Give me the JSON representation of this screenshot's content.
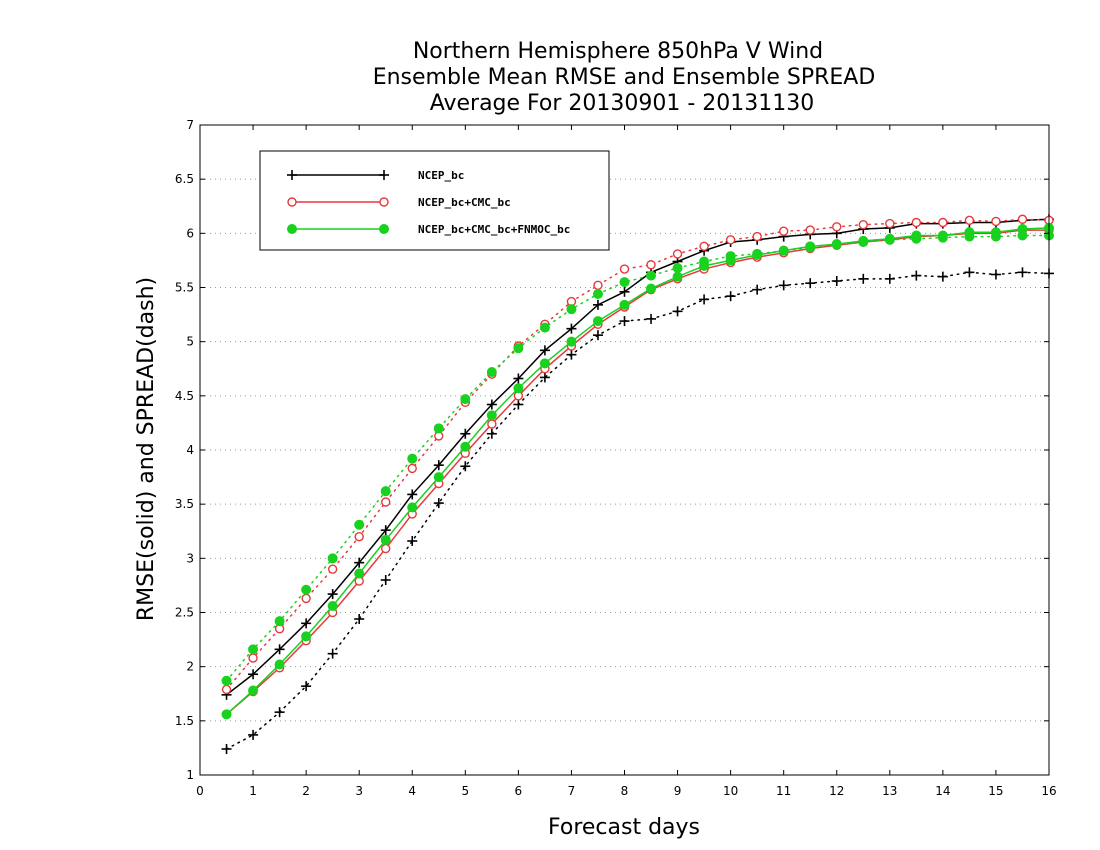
{
  "chart_data": {
    "type": "line",
    "title_lines": [
      "Northern Hemisphere 850hPa V Wind",
      "Ensemble Mean RMSE and Ensemble SPREAD",
      "Average For 20130901 - 20131130"
    ],
    "xlabel": "Forecast days",
    "ylabel": "RMSE(solid) and SPREAD(dash)",
    "xlim": [
      0,
      16
    ],
    "ylim": [
      1,
      7
    ],
    "xticks": [
      "0",
      "1",
      "2",
      "3",
      "4",
      "5",
      "6",
      "7",
      "8",
      "9",
      "10",
      "11",
      "12",
      "13",
      "14",
      "15",
      "16"
    ],
    "yticks": [
      "1",
      "1.5",
      "2",
      "2.5",
      "3",
      "3.5",
      "4",
      "4.5",
      "5",
      "5.5",
      "6",
      "6.5",
      "7"
    ],
    "grid": "horizontal-dotted",
    "legend_position": "top-left",
    "x": [
      0.5,
      1,
      1.5,
      2,
      2.5,
      3,
      3.5,
      4,
      4.5,
      5,
      5.5,
      6,
      6.5,
      7,
      7.5,
      8,
      8.5,
      9,
      9.5,
      10,
      10.5,
      11,
      11.5,
      12,
      12.5,
      13,
      13.5,
      14,
      14.5,
      15,
      15.5,
      16
    ],
    "series": [
      {
        "name": "NCEP_bc",
        "color": "#000000",
        "marker": "plus",
        "rmse": [
          1.74,
          1.93,
          2.16,
          2.4,
          2.67,
          2.96,
          3.26,
          3.59,
          3.86,
          4.15,
          4.42,
          4.66,
          4.92,
          5.12,
          5.34,
          5.46,
          5.64,
          5.74,
          5.84,
          5.92,
          5.94,
          5.97,
          5.99,
          6.0,
          6.04,
          6.05,
          6.09,
          6.09,
          6.1,
          6.1,
          6.12,
          6.13
        ],
        "spread": [
          1.24,
          1.37,
          1.58,
          1.82,
          2.12,
          2.44,
          2.8,
          3.16,
          3.51,
          3.85,
          4.15,
          4.42,
          4.67,
          4.88,
          5.06,
          5.19,
          5.21,
          5.28,
          5.39,
          5.42,
          5.48,
          5.52,
          5.54,
          5.56,
          5.58,
          5.58,
          5.61,
          5.6,
          5.64,
          5.62,
          5.64,
          5.63
        ]
      },
      {
        "name": "NCEP_bc+CMC_bc",
        "color": "#e8383c",
        "marker": "circle-open",
        "rmse": [
          1.56,
          1.77,
          1.99,
          2.24,
          2.5,
          2.79,
          3.09,
          3.41,
          3.69,
          3.97,
          4.24,
          4.5,
          4.75,
          4.96,
          5.16,
          5.32,
          5.48,
          5.58,
          5.67,
          5.73,
          5.78,
          5.82,
          5.86,
          5.89,
          5.92,
          5.94,
          5.97,
          5.98,
          6.0,
          6.0,
          6.03,
          6.03
        ],
        "spread": [
          1.79,
          2.08,
          2.35,
          2.63,
          2.9,
          3.2,
          3.52,
          3.83,
          4.13,
          4.44,
          4.7,
          4.96,
          5.16,
          5.37,
          5.52,
          5.67,
          5.71,
          5.81,
          5.88,
          5.94,
          5.97,
          6.02,
          6.03,
          6.06,
          6.08,
          6.09,
          6.1,
          6.1,
          6.12,
          6.11,
          6.13,
          6.12
        ]
      },
      {
        "name": "NCEP_bc+CMC_bc+FNMOC_bc",
        "color": "#19d11f",
        "marker": "circle-filled",
        "rmse": [
          1.56,
          1.78,
          2.02,
          2.28,
          2.56,
          2.86,
          3.17,
          3.47,
          3.75,
          4.03,
          4.32,
          4.57,
          4.8,
          5.0,
          5.19,
          5.34,
          5.49,
          5.6,
          5.7,
          5.75,
          5.8,
          5.84,
          5.88,
          5.9,
          5.93,
          5.95,
          5.98,
          5.98,
          6.01,
          6.01,
          6.04,
          6.05
        ],
        "spread": [
          1.87,
          2.16,
          2.42,
          2.71,
          3.0,
          3.31,
          3.62,
          3.92,
          4.2,
          4.47,
          4.72,
          4.94,
          5.13,
          5.3,
          5.44,
          5.55,
          5.61,
          5.68,
          5.74,
          5.79,
          5.81,
          5.84,
          5.87,
          5.9,
          5.92,
          5.94,
          5.95,
          5.96,
          5.97,
          5.97,
          5.98,
          5.98
        ]
      }
    ]
  }
}
